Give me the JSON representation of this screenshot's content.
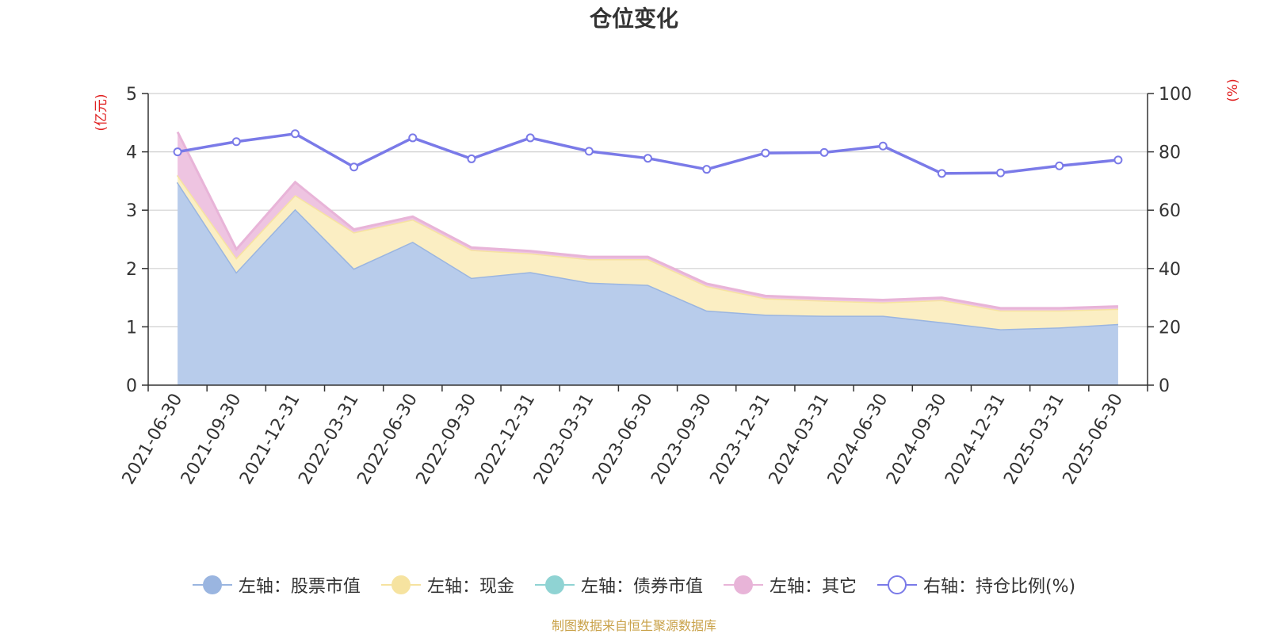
{
  "chart_data": {
    "type": "area",
    "title": "仓位变化",
    "categories": [
      "2021-06-30",
      "2021-09-30",
      "2021-12-31",
      "2022-03-31",
      "2022-06-30",
      "2022-09-30",
      "2022-12-31",
      "2023-03-31",
      "2023-06-30",
      "2023-09-30",
      "2023-12-31",
      "2024-03-31",
      "2024-06-30",
      "2024-09-30",
      "2024-12-31",
      "2025-03-31",
      "2025-06-30"
    ],
    "left_axis": {
      "label": "(亿元)",
      "min": 0,
      "max": 5,
      "ticks": [
        0,
        1,
        2,
        3,
        4,
        5
      ]
    },
    "right_axis": {
      "label": "(%)",
      "min": 0,
      "max": 100,
      "ticks": [
        0,
        20,
        40,
        60,
        80,
        100
      ]
    },
    "series": [
      {
        "name": "左轴：股票市值",
        "axis": "left",
        "stack": true,
        "color": "#9ab5e0",
        "fill": "#b8cceb",
        "values": [
          3.48,
          1.94,
          3.02,
          2.0,
          2.46,
          1.84,
          1.94,
          1.76,
          1.72,
          1.28,
          1.21,
          1.19,
          1.19,
          1.08,
          0.96,
          0.99,
          1.05
        ]
      },
      {
        "name": "左轴：现金",
        "axis": "left",
        "stack": true,
        "color": "#f6e3a0",
        "fill": "#fbeec3",
        "values": [
          0.12,
          0.24,
          0.24,
          0.62,
          0.38,
          0.48,
          0.32,
          0.4,
          0.44,
          0.42,
          0.28,
          0.26,
          0.23,
          0.38,
          0.32,
          0.29,
          0.26
        ]
      },
      {
        "name": "左轴：债券市值",
        "axis": "left",
        "stack": true,
        "color": "#8fd3d3",
        "fill": "#bde6e6",
        "values": [
          0,
          0,
          0,
          0,
          0,
          0,
          0,
          0,
          0,
          0,
          0,
          0,
          0,
          0,
          0,
          0,
          0
        ]
      },
      {
        "name": "左轴：其它",
        "axis": "left",
        "stack": true,
        "color": "#e8b4d8",
        "fill": "#eec4e1",
        "values": [
          0.74,
          0.15,
          0.22,
          0.05,
          0.05,
          0.04,
          0.04,
          0.04,
          0.04,
          0.04,
          0.04,
          0.04,
          0.04,
          0.04,
          0.04,
          0.04,
          0.04
        ]
      },
      {
        "name": "右轴：持仓比例(%)",
        "axis": "right",
        "stack": false,
        "color": "#7a7ae8",
        "values": [
          80,
          83.5,
          86.2,
          74.8,
          84.8,
          77.6,
          84.8,
          80.2,
          77.8,
          74,
          79.6,
          79.8,
          82,
          72.6,
          72.8,
          75.2,
          77.2
        ]
      }
    ],
    "grid": true,
    "legend_position": "bottom",
    "source": "制图数据来自恒生聚源数据库"
  }
}
